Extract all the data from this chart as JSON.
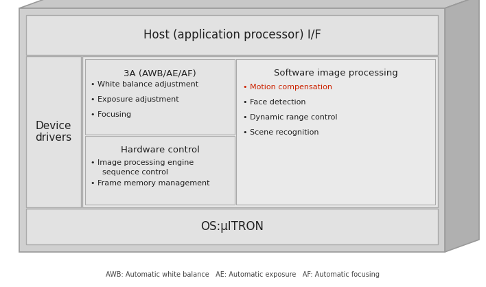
{
  "bg_color": "#ffffff",
  "outer_face_color": "#d0d0d0",
  "outer_top_color": "#c0c0c0",
  "outer_right_color": "#b8b8b8",
  "outer_edge_color": "#999999",
  "host_label": "Host (application processor) I/F",
  "host_fontsize": 12,
  "os_label": "OS:μITRON",
  "os_fontsize": 12,
  "dd_label": "Device\ndrivers",
  "dd_fontsize": 11,
  "box_3a_title": "3A (AWB/AE/AF)",
  "box_3a_bullets": [
    "• White balance adjustment",
    "• Exposure adjustment",
    "• Focusing"
  ],
  "box_hw_title": "Hardware control",
  "box_hw_bullets": [
    "• Image processing engine\n  sequence control",
    "• Frame memory management"
  ],
  "box_sw_title": "Software image processing",
  "box_sw_bullets_red": [
    "• Motion compensation"
  ],
  "box_sw_bullets_black": [
    "• Face detection",
    "• Dynamic range control",
    "• Scene recognition"
  ],
  "title_fontsize": 9.5,
  "bullet_fontsize": 8.0,
  "red_color": "#cc2200",
  "dark_text": "#222222",
  "footer": "AWB: Automatic white balance   AE: Automatic exposure   AF: Automatic focusing",
  "footer_fontsize": 7.0,
  "inner_face_color": "#e8e8e8",
  "inner_edge_color": "#aaaaaa",
  "sub_face_color": "#e0e0e0",
  "sub_edge_color": "#aaaaaa"
}
